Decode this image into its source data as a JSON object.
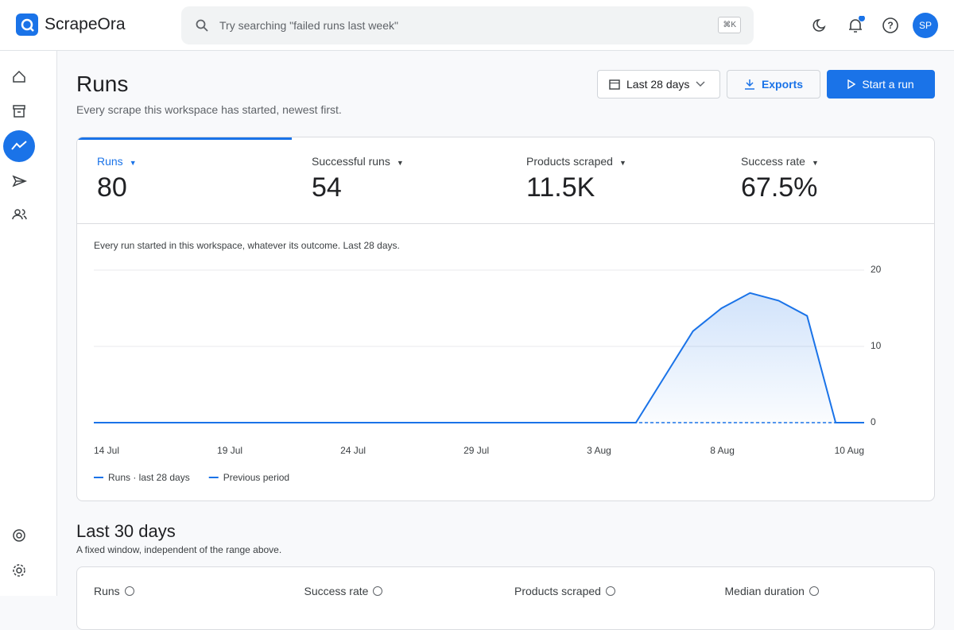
{
  "header": {
    "brand": "ScrapeOra",
    "search_placeholder": "Try searching \"failed runs last week\"",
    "search_shortcut": "⌘K",
    "avatar": "SP"
  },
  "page": {
    "title": "Runs",
    "subtitle": "Every scrape this workspace has started, newest first.",
    "actions": {
      "range": "Last 28 days",
      "export": "Exports",
      "start": "Start a run"
    }
  },
  "metrics": [
    {
      "label": "Runs",
      "value": "80"
    },
    {
      "label": "Successful runs",
      "value": "54"
    },
    {
      "label": "Products scraped",
      "value": "11.5K"
    },
    {
      "label": "Success rate",
      "value": "67.5%"
    }
  ],
  "chart_data": {
    "type": "line",
    "description": "Every run started in this workspace, whatever its outcome. Last 28 days.",
    "x_labels": [
      "14 Jul",
      "19 Jul",
      "24 Jul",
      "29 Jul",
      "3 Aug",
      "8 Aug",
      "10 Aug"
    ],
    "series": [
      {
        "name": "Runs · last 28 days",
        "color": "#1a73e8",
        "values": [
          0,
          0,
          0,
          0,
          0,
          0,
          0,
          0,
          0,
          0,
          0,
          0,
          0,
          0,
          0,
          0,
          0,
          0,
          0,
          0,
          6,
          12,
          15,
          17,
          16,
          14,
          0,
          0
        ]
      },
      {
        "name": "Previous period",
        "color": "#1a73e8",
        "dashed": true,
        "values": [
          0,
          0,
          0,
          0,
          0,
          0,
          0,
          0,
          0,
          0,
          0,
          0,
          0,
          0,
          0,
          0,
          0,
          0,
          0,
          0,
          0,
          0,
          0,
          0,
          0,
          0,
          0,
          0
        ]
      }
    ],
    "ylim": [
      0,
      20
    ],
    "yticks": [
      0,
      10,
      20
    ],
    "grid": true,
    "area": true
  },
  "summary": {
    "title": "Last 30 days",
    "subtitle": "A fixed window, independent of the range above.",
    "columns": [
      "Runs",
      "Success rate",
      "Products scraped",
      "Median duration"
    ]
  }
}
